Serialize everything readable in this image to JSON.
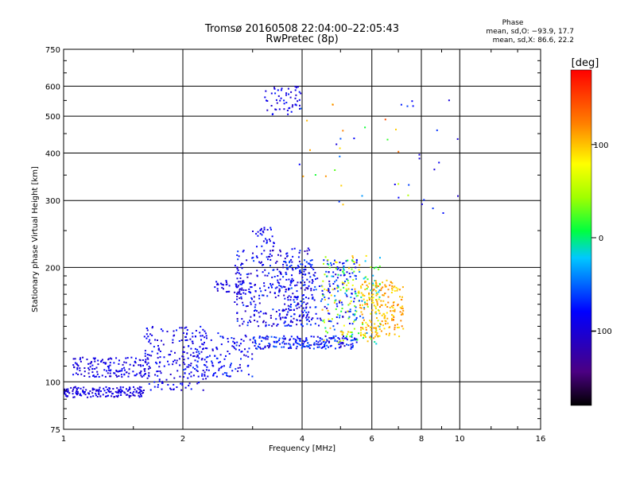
{
  "chart_data": {
    "type": "scatter",
    "title": "Tromsø 20160508 22:04:00–22:05:43",
    "subtitle": "RwPretec (8p)",
    "xlabel": "Frequency [MHz]",
    "ylabel": "Stationary phase Virtual Height [km]",
    "x_scale": "log",
    "y_scale": "log",
    "xlim": [
      1,
      16
    ],
    "ylim": [
      75,
      750
    ],
    "x_ticks": [
      1,
      2,
      4,
      6,
      8,
      10,
      16
    ],
    "x_tick_labels": [
      "1",
      "2",
      "4",
      "6",
      "8",
      "10",
      "16"
    ],
    "y_ticks": [
      75,
      100,
      200,
      300,
      400,
      500,
      600,
      750
    ],
    "y_tick_labels": [
      "75",
      "100",
      "200",
      "300",
      "400",
      "500",
      "600",
      "750"
    ],
    "grid": true,
    "phase_stats": {
      "title": "Phase",
      "line_o": "mean, sd,O: −93.9, 17.7",
      "line_x": "mean, sd,X:  86.6, 22.2"
    },
    "colorbar": {
      "label": "[deg]",
      "range": [
        -180,
        180
      ],
      "ticks": [
        100,
        0,
        -100
      ],
      "tick_labels": [
        "100",
        "0",
        "−100"
      ],
      "colormap": "rainbow"
    },
    "point_groups": [
      {
        "x": [
          1.0,
          1.6
        ],
        "y": [
          91,
          97
        ],
        "phase": [
          -110,
          -80
        ],
        "n": 160
      },
      {
        "x": [
          1.05,
          1.65
        ],
        "y": [
          103,
          116
        ],
        "phase": [
          -110,
          -75
        ],
        "n": 150
      },
      {
        "x": [
          1.6,
          2.3
        ],
        "y": [
          95,
          140
        ],
        "phase": [
          -110,
          -70
        ],
        "n": 180
      },
      {
        "x": [
          2.0,
          3.0
        ],
        "y": [
          103,
          135
        ],
        "phase": [
          -110,
          -60
        ],
        "n": 140
      },
      {
        "x": [
          2.4,
          2.9
        ],
        "y": [
          170,
          185
        ],
        "phase": [
          -110,
          -80
        ],
        "n": 40
      },
      {
        "x": [
          2.7,
          4.2
        ],
        "y": [
          140,
          225
        ],
        "phase": [
          -120,
          -60
        ],
        "n": 320
      },
      {
        "x": [
          3.0,
          3.4
        ],
        "y": [
          220,
          255
        ],
        "phase": [
          -110,
          -70
        ],
        "n": 30
      },
      {
        "x": [
          3.0,
          5.5
        ],
        "y": [
          122,
          132
        ],
        "phase": [
          -110,
          -50
        ],
        "n": 200
      },
      {
        "x": [
          3.5,
          5.5
        ],
        "y": [
          140,
          210
        ],
        "phase": [
          -110,
          -50
        ],
        "n": 220
      },
      {
        "x": [
          4.5,
          6.3
        ],
        "y": [
          125,
          215
        ],
        "phase": [
          -60,
          110
        ],
        "n": 200
      },
      {
        "x": [
          5.6,
          7.2
        ],
        "y": [
          130,
          185
        ],
        "phase": [
          85,
          125
        ],
        "n": 200
      },
      {
        "x": [
          3.2,
          4.0
        ],
        "y": [
          505,
          600
        ],
        "phase": [
          -110,
          -70
        ],
        "n": 55
      },
      {
        "x": [
          3.8,
          7.5
        ],
        "y": [
          280,
          540
        ],
        "phase": [
          -100,
          150
        ],
        "n": 28
      },
      {
        "x": [
          6.7,
          10.0
        ],
        "y": [
          270,
          580
        ],
        "phase": [
          -110,
          -60
        ],
        "n": 18
      }
    ]
  }
}
